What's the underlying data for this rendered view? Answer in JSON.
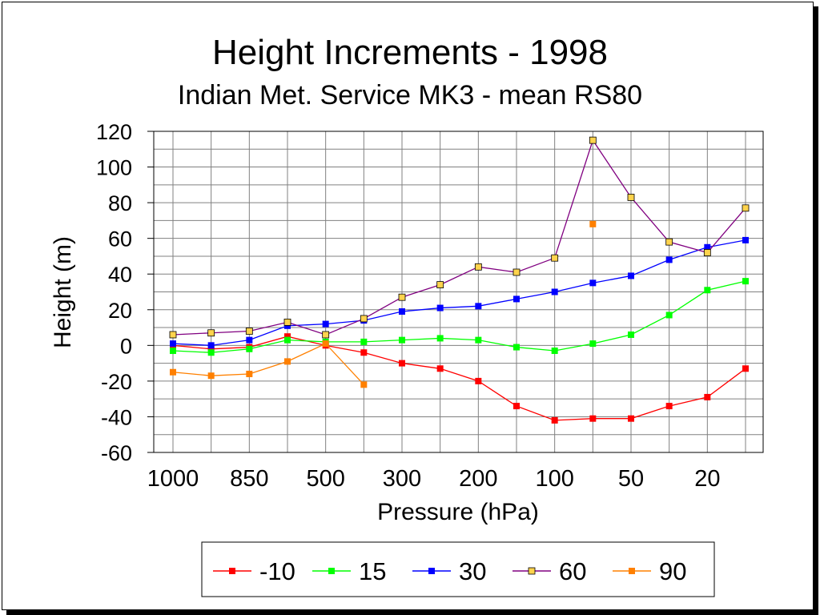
{
  "chart_data": {
    "type": "line",
    "title": "Height Increments - 1998",
    "subtitle": "Indian Met. Service MK3 - mean RS80",
    "xlabel": "Pressure (hPa)",
    "ylabel": "Height (m)",
    "x": [
      "1000",
      "925",
      "850",
      "700",
      "500",
      "400",
      "300",
      "250",
      "200",
      "150",
      "100",
      "70",
      "50",
      "30",
      "20",
      "10"
    ],
    "x_tick_labels": [
      "1000",
      "850",
      "500",
      "300",
      "200",
      "100",
      "50",
      "20"
    ],
    "ylim": [
      -60,
      120
    ],
    "y_ticks": [
      "120",
      "100",
      "80",
      "60",
      "40",
      "20",
      "0",
      "-20",
      "-40",
      "-60"
    ],
    "grid": true,
    "legend_position": "bottom",
    "series": [
      {
        "name": "-10",
        "color": "#ff0000",
        "marker_fill": "#ff0000",
        "values": [
          0,
          -2,
          -1,
          5,
          0,
          -4,
          -10,
          -13,
          -20,
          -34,
          -42,
          -41,
          -41,
          -34,
          -29,
          -13
        ]
      },
      {
        "name": "15",
        "color": "#00ff00",
        "marker_fill": "#00ff00",
        "values": [
          -3,
          -4,
          -2,
          3,
          2,
          2,
          3,
          4,
          3,
          -1,
          -3,
          1,
          6,
          17,
          31,
          36
        ]
      },
      {
        "name": "30",
        "color": "#0000ff",
        "marker_fill": "#0000ff",
        "values": [
          1,
          0,
          3,
          11,
          12,
          14,
          19,
          21,
          22,
          26,
          30,
          35,
          39,
          48,
          55,
          59
        ]
      },
      {
        "name": "60",
        "color": "#800080",
        "marker_fill": "#ffd34d",
        "values": [
          6,
          7,
          8,
          13,
          6,
          15,
          27,
          34,
          44,
          41,
          49,
          115,
          83,
          58,
          52,
          77
        ]
      },
      {
        "name": "90",
        "color": "#ff8000",
        "marker_fill": "#ff8000",
        "values": [
          -15,
          -17,
          -16,
          -9,
          1,
          -22,
          null,
          null,
          null,
          null,
          null,
          68,
          null,
          null,
          null,
          null
        ]
      }
    ]
  }
}
